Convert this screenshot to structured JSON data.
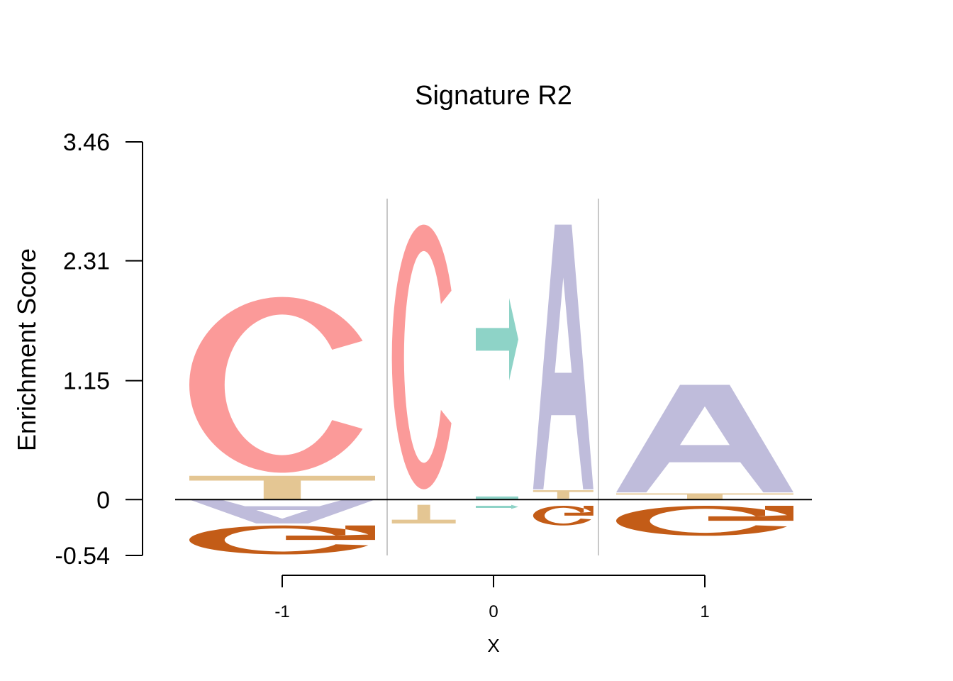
{
  "chart_data": {
    "type": "sequence-logo",
    "title": "Signature R2",
    "xlabel": "X",
    "ylabel": "Enrichment Score",
    "ylim": [
      -0.54,
      3.46
    ],
    "y_ticks": [
      "3.46",
      "2.31",
      "1.15",
      "0",
      "-0.54"
    ],
    "y_tick_values": [
      3.46,
      2.31,
      1.15,
      0,
      -0.54
    ],
    "x_ticks": [
      "-1",
      "0",
      "1"
    ],
    "x_tick_values": [
      -1,
      0,
      1
    ],
    "grid": false,
    "legend": "none",
    "colors": {
      "A": "#bfbcdb",
      "C": "#fb9a99",
      "G": "#c35c17",
      "T": "#e4c693",
      "arrow": "#8ed3c7",
      "separator": "#c8c8c8"
    },
    "positions": [
      {
        "x": -1,
        "stack": [
          {
            "base": "T",
            "from": 0.0,
            "to": 0.23
          },
          {
            "base": "C",
            "from": 0.26,
            "to": 1.96
          }
        ],
        "below": [
          {
            "base": "A",
            "from": -0.23,
            "to": 0.0
          },
          {
            "base": "G",
            "from": -0.53,
            "to": -0.25
          }
        ]
      },
      {
        "x": -0.33,
        "stack": [
          {
            "base": "C",
            "from": 0.1,
            "to": 2.66
          }
        ],
        "below": [
          {
            "base": "T",
            "from": -0.23,
            "to": -0.05
          }
        ]
      },
      {
        "x": 0.33,
        "stack": [
          {
            "base": "T",
            "from": 0.01,
            "to": 0.09
          },
          {
            "base": "A",
            "from": 0.1,
            "to": 2.66
          }
        ],
        "below": [
          {
            "base": "G",
            "from": -0.25,
            "to": -0.06
          }
        ]
      },
      {
        "x": 1,
        "stack": [
          {
            "base": "T",
            "from": 0.0,
            "to": 0.06
          },
          {
            "base": "A",
            "from": 0.07,
            "to": 1.11
          }
        ],
        "below": [
          {
            "base": "G",
            "from": -0.35,
            "to": -0.06
          }
        ]
      }
    ],
    "arrow": {
      "x": 0,
      "from": 1.3,
      "to": 1.8
    },
    "separators": [
      -0.5,
      0.5
    ]
  }
}
